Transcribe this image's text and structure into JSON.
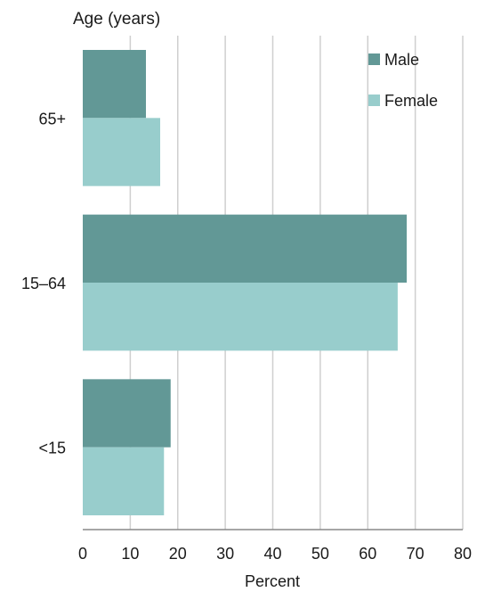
{
  "chart_data": {
    "type": "bar",
    "orientation": "horizontal",
    "categories": [
      "65+",
      "15–64",
      "<15"
    ],
    "series": [
      {
        "name": "Male",
        "color": "#629896",
        "values": [
          13.3,
          68.2,
          18.5
        ]
      },
      {
        "name": "Female",
        "color": "#98cdcc",
        "values": [
          16.3,
          66.3,
          17.1
        ]
      }
    ],
    "xlabel": "Percent",
    "ylabel": "Age (years)",
    "xlim": [
      0,
      80
    ],
    "xticks": [
      0,
      10,
      20,
      30,
      40,
      50,
      60,
      70,
      80
    ],
    "grid": "vertical",
    "legend_position": "top-right"
  }
}
